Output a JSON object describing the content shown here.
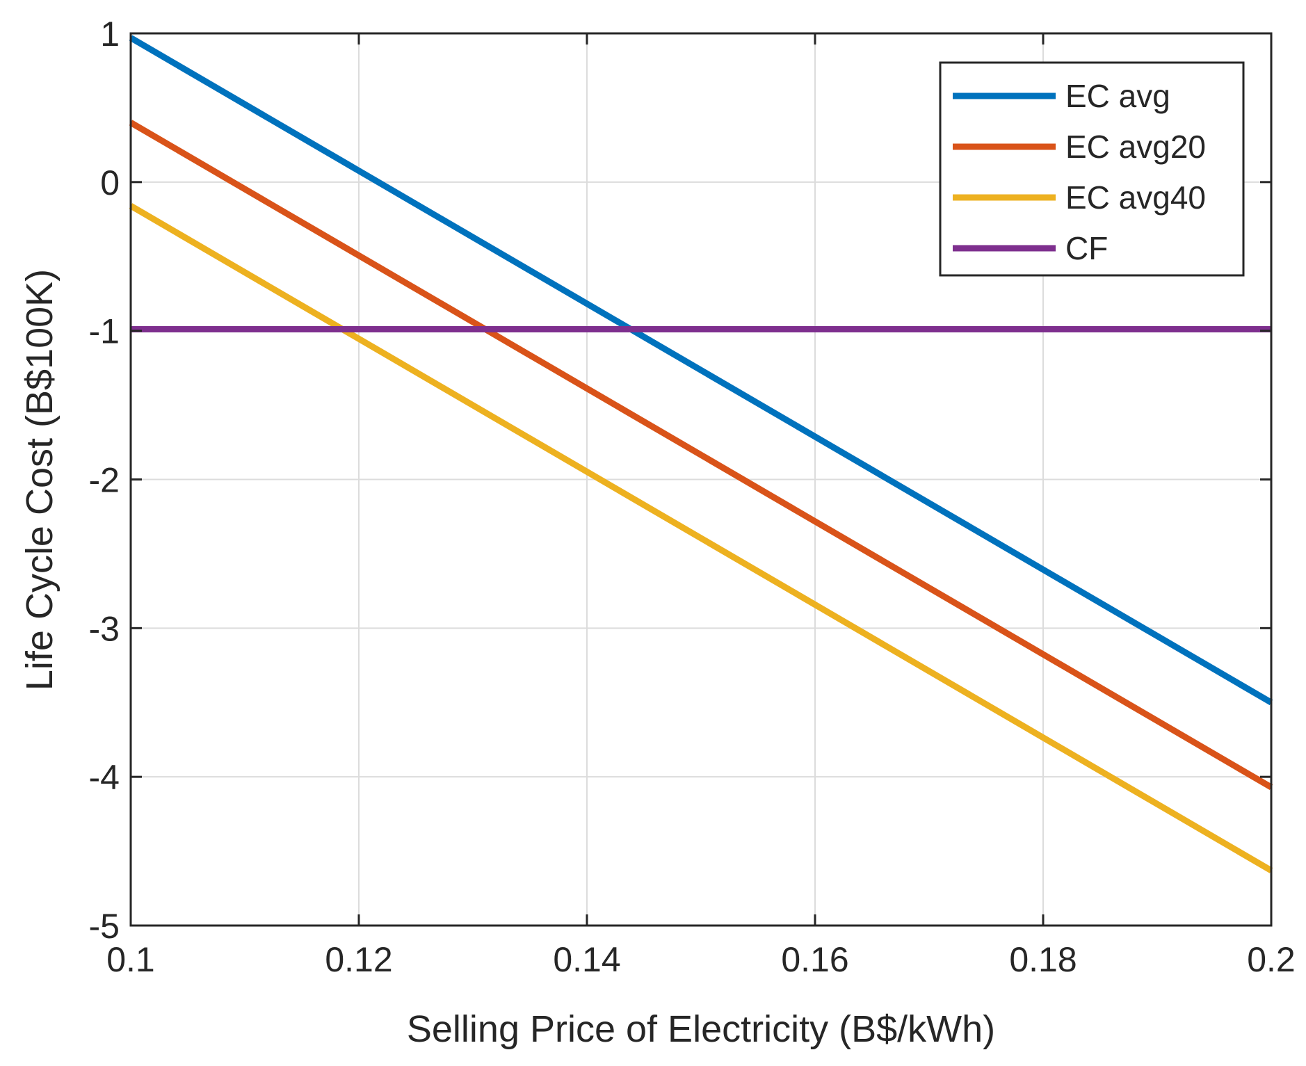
{
  "chart_data": {
    "type": "line",
    "title": "",
    "xlabel": "Selling Price of Electricity (B$/kWh)",
    "ylabel": "Life Cycle Cost (B$100K)",
    "xlim": [
      0.1,
      0.2
    ],
    "ylim": [
      -5,
      1
    ],
    "xticks": [
      0.1,
      0.12,
      0.14,
      0.16,
      0.18,
      0.2
    ],
    "xtick_labels": [
      "0.1",
      "0.12",
      "0.14",
      "0.16",
      "0.18",
      "0.2"
    ],
    "yticks": [
      1,
      0,
      -1,
      -2,
      -3,
      -4,
      -5
    ],
    "ytick_labels": [
      "1",
      "0",
      "-1",
      "-2",
      "-3",
      "-4",
      "-5"
    ],
    "grid": true,
    "legend_position": "top-right",
    "series": [
      {
        "name": "EC avg",
        "color": "#0072BD",
        "x": [
          0.1,
          0.2
        ],
        "y": [
          0.97,
          -3.5
        ]
      },
      {
        "name": "EC avg20",
        "color": "#D95319",
        "x": [
          0.1,
          0.2
        ],
        "y": [
          0.4,
          -4.07
        ]
      },
      {
        "name": "EC avg40",
        "color": "#EDB120",
        "x": [
          0.1,
          0.2
        ],
        "y": [
          -0.16,
          -4.63
        ]
      },
      {
        "name": "CF",
        "color": "#7E2F8E",
        "x": [
          0.1,
          0.2
        ],
        "y": [
          -0.99,
          -0.99
        ]
      }
    ]
  }
}
